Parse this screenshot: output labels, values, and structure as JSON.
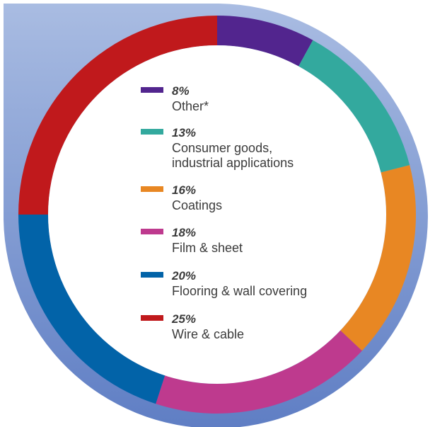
{
  "chart_data": {
    "type": "pie",
    "title": "",
    "categories": [
      "Other*",
      "Consumer goods, industrial applications",
      "Coatings",
      "Film & sheet",
      "Flooring & wall covering",
      "Wire & cable"
    ],
    "values": [
      8,
      13,
      16,
      18,
      20,
      25
    ],
    "unit": "%",
    "colors": [
      "#52258E",
      "#33A99E",
      "#E88723",
      "#BE3A8E",
      "#0263A8",
      "#C0191C"
    ],
    "legend": {
      "placement": "center",
      "items": [
        {
          "pct": "8%",
          "lines": [
            "Other*"
          ]
        },
        {
          "pct": "13%",
          "lines": [
            "Consumer goods,",
            "industrial applications"
          ]
        },
        {
          "pct": "16%",
          "lines": [
            "Coatings"
          ]
        },
        {
          "pct": "18%",
          "lines": [
            "Film & sheet"
          ]
        },
        {
          "pct": "20%",
          "lines": [
            "Flooring & wall covering"
          ]
        },
        {
          "pct": "25%",
          "lines": [
            "Wire & cable"
          ]
        }
      ]
    },
    "donut": true
  },
  "style": {
    "backdrop_color_top": "#A9BCE2",
    "backdrop_color_bottom": "#5F7EC4",
    "pct_text_color": "#3B3B3B",
    "label_text_color": "#3B3B3B"
  }
}
